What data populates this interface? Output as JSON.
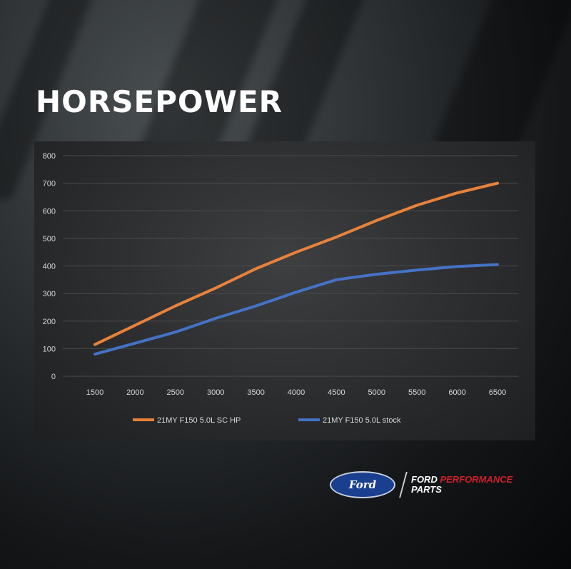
{
  "title": "HORSEPOWER",
  "chart_data": {
    "type": "line",
    "title": "",
    "xlabel": "",
    "ylabel": "",
    "x": [
      1500,
      2000,
      2500,
      3000,
      3500,
      4000,
      4500,
      5000,
      5500,
      6000,
      6500
    ],
    "ylim": [
      0,
      800
    ],
    "yticks": [
      0,
      100,
      200,
      300,
      400,
      500,
      600,
      700,
      800
    ],
    "grid": true,
    "legend_position": "bottom",
    "series": [
      {
        "name": "21MY F150 5.0L SC HP",
        "color": "#e8823a",
        "values": [
          115,
          185,
          255,
          320,
          390,
          450,
          505,
          565,
          620,
          665,
          700
        ]
      },
      {
        "name": "21MY F150 5.0L stock",
        "color": "#4472c4",
        "values": [
          80,
          120,
          160,
          210,
          255,
          305,
          350,
          370,
          385,
          398,
          405
        ]
      }
    ]
  },
  "logo": {
    "ford": "Ford",
    "brand_white": "FORD",
    "brand_red": "PERFORMANCE",
    "brand_sub": "PARTS",
    "red": "#d0202a"
  }
}
